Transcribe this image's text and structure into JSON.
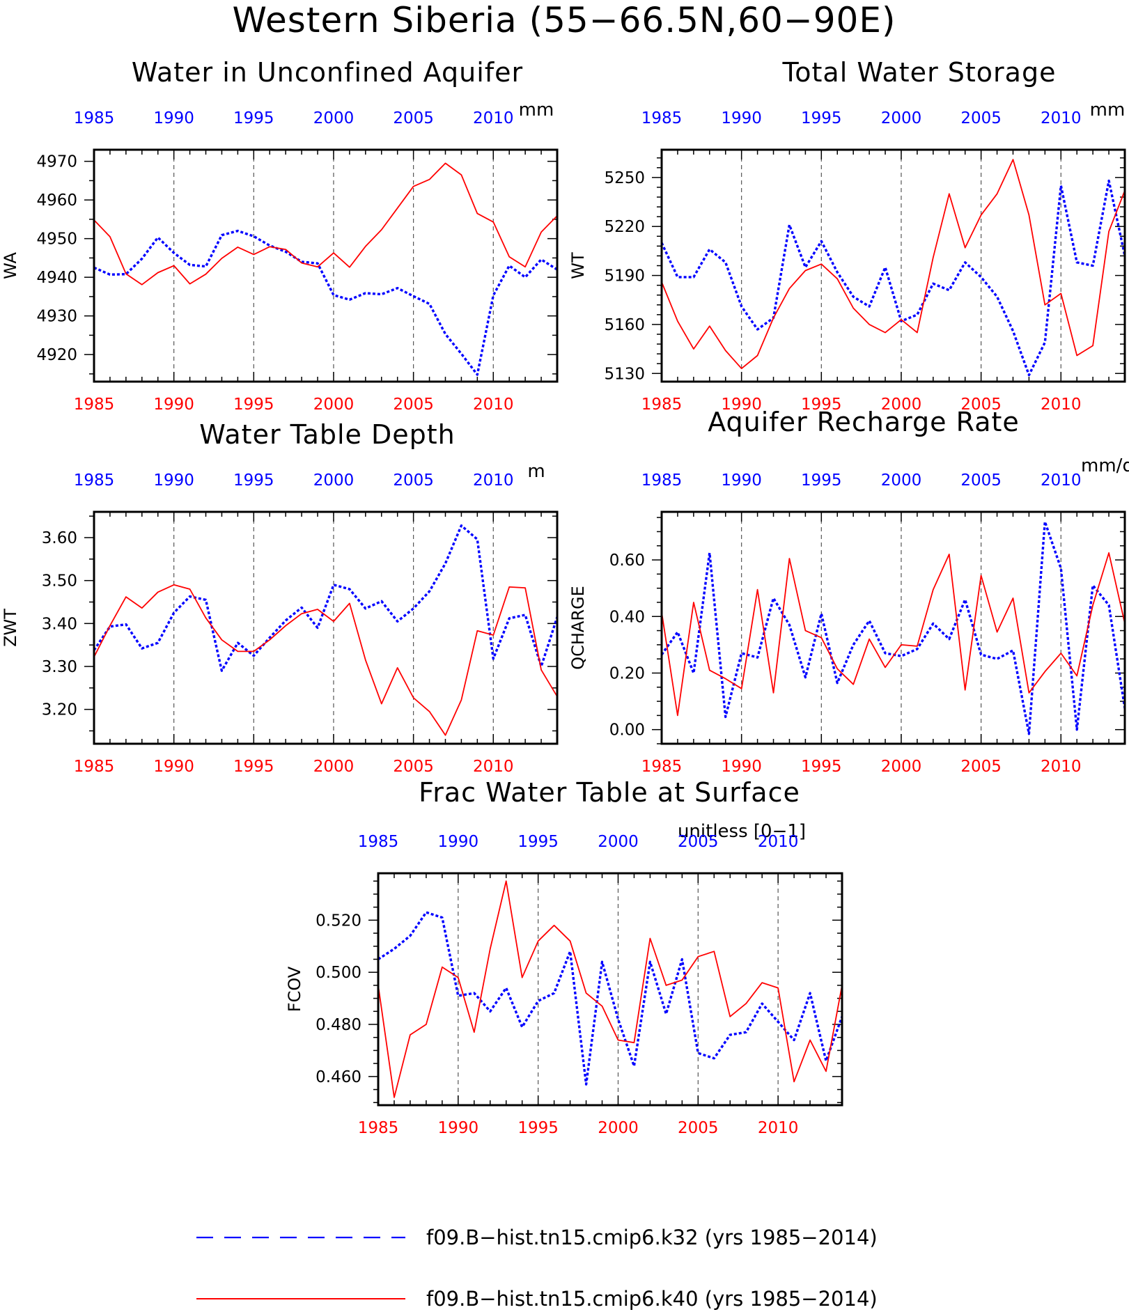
{
  "figure": {
    "title": "Western Siberia (55−66.5N,60−90E)"
  },
  "colors": {
    "k32": "#0000ff",
    "k40": "#ff0000",
    "axis": "#000000"
  },
  "legend": {
    "k32": "f09.B−hist.tn15.cmip6.k32 (yrs 1985−2014)",
    "k40": "f09.B−hist.tn15.cmip6.k40 (yrs 1985−2014)"
  },
  "chart_data": [
    {
      "type": "line",
      "title": "Water in Unconfined Aquifer",
      "ylabel": "WA",
      "units": "mm",
      "xlim": [
        1985,
        2014
      ],
      "ylim": [
        4913,
        4973
      ],
      "yticks": [
        4920,
        4930,
        4940,
        4950,
        4960,
        4970
      ],
      "ytick_labels": [
        "4920",
        "4930",
        "4940",
        "4950",
        "4960",
        "4970"
      ],
      "yminor": 2,
      "series": [
        {
          "key": "k32",
          "values": [
            4942.5,
            4940.7,
            4940.8,
            4944.8,
            4950.3,
            4946.3,
            4943.2,
            4942.8,
            4950.9,
            4952.0,
            4950.6,
            4948.2,
            4946.6,
            4944.0,
            4943.6,
            4935.4,
            4934.2,
            4935.9,
            4935.6,
            4937.2,
            4935.1,
            4933.1,
            4925.3,
            4920.2,
            4914.8,
            4935.3,
            4943.0,
            4940.0,
            4944.6,
            4942.0
          ]
        },
        {
          "key": "k40",
          "values": [
            4954.8,
            4950.5,
            4940.9,
            4938.1,
            4941.2,
            4943.0,
            4938.3,
            4940.8,
            4944.9,
            4947.8,
            4945.9,
            4947.9,
            4947.2,
            4943.7,
            4942.7,
            4946.3,
            4942.6,
            4948.0,
            4952.3,
            4957.9,
            4963.5,
            4965.3,
            4969.5,
            4966.5,
            4956.5,
            4954.3,
            4945.3,
            4942.7,
            4951.7,
            4955.9
          ]
        }
      ]
    },
    {
      "type": "line",
      "title": "Total Water Storage",
      "ylabel": "WT",
      "units": "mm",
      "xlim": [
        1985,
        2014
      ],
      "ylim": [
        5125,
        5267
      ],
      "yticks": [
        5130,
        5160,
        5190,
        5220,
        5250
      ],
      "ytick_labels": [
        "5130",
        "5160",
        "5190",
        "5220",
        "5250"
      ],
      "yminor": 5,
      "series": [
        {
          "key": "k32",
          "values": [
            5210,
            5189,
            5189,
            5206,
            5198,
            5171,
            5157,
            5164,
            5221,
            5195,
            5211,
            5192,
            5177,
            5171,
            5195,
            5162,
            5166,
            5185,
            5181,
            5198,
            5189,
            5177,
            5156,
            5129,
            5149,
            5245,
            5198,
            5196,
            5248,
            5202
          ]
        },
        {
          "key": "k40",
          "values": [
            5186,
            5162,
            5145,
            5159,
            5144,
            5133,
            5141,
            5164,
            5182,
            5193,
            5197,
            5188,
            5170,
            5160,
            5155,
            5163,
            5155,
            5201,
            5240,
            5207,
            5227,
            5240,
            5261,
            5227,
            5172,
            5179,
            5141,
            5147,
            5217,
            5242
          ]
        }
      ]
    },
    {
      "type": "line",
      "title": "Water Table Depth",
      "ylabel": "ZWT",
      "units": "m",
      "xlim": [
        1985,
        2014
      ],
      "ylim": [
        3.12,
        3.66
      ],
      "yticks": [
        3.2,
        3.3,
        3.4,
        3.5,
        3.6
      ],
      "ytick_labels": [
        "3.20",
        "3.30",
        "3.40",
        "3.50",
        "3.60"
      ],
      "yminor": 2,
      "series": [
        {
          "key": "k32",
          "values": [
            3.338,
            3.393,
            3.398,
            3.342,
            3.355,
            3.425,
            3.463,
            3.455,
            3.29,
            3.355,
            3.325,
            3.367,
            3.407,
            3.437,
            3.39,
            3.49,
            3.48,
            3.435,
            3.452,
            3.405,
            3.435,
            3.475,
            3.54,
            3.628,
            3.596,
            3.318,
            3.412,
            3.42,
            3.3,
            3.415
          ]
        },
        {
          "key": "k40",
          "values": [
            3.322,
            3.395,
            3.462,
            3.436,
            3.473,
            3.49,
            3.48,
            3.413,
            3.362,
            3.335,
            3.335,
            3.362,
            3.395,
            3.423,
            3.433,
            3.405,
            3.447,
            3.315,
            3.213,
            3.297,
            3.227,
            3.195,
            3.14,
            3.222,
            3.383,
            3.373,
            3.485,
            3.483,
            3.292,
            3.23
          ]
        }
      ]
    },
    {
      "type": "line",
      "title": "Aquifer Recharge Rate",
      "ylabel": "QCHARGE",
      "units": "mm/d",
      "xlim": [
        1985,
        2014
      ],
      "ylim": [
        -0.05,
        0.77
      ],
      "yticks": [
        0.0,
        0.2,
        0.4,
        0.6
      ],
      "ytick_labels": [
        "0.00",
        "0.20",
        "0.40",
        "0.60"
      ],
      "yminor": 4,
      "series": [
        {
          "key": "k32",
          "values": [
            0.265,
            0.345,
            0.2,
            0.625,
            0.045,
            0.27,
            0.255,
            0.465,
            0.37,
            0.185,
            0.41,
            0.165,
            0.3,
            0.385,
            0.27,
            0.26,
            0.285,
            0.375,
            0.32,
            0.46,
            0.265,
            0.25,
            0.28,
            -0.015,
            0.735,
            0.57,
            0.0,
            0.51,
            0.44,
            0.075
          ]
        },
        {
          "key": "k40",
          "values": [
            0.415,
            0.05,
            0.45,
            0.21,
            0.18,
            0.145,
            0.495,
            0.13,
            0.605,
            0.35,
            0.325,
            0.215,
            0.16,
            0.32,
            0.22,
            0.3,
            0.295,
            0.495,
            0.62,
            0.14,
            0.545,
            0.345,
            0.465,
            0.13,
            0.205,
            0.27,
            0.19,
            0.44,
            0.625,
            0.375
          ]
        }
      ]
    },
    {
      "type": "line",
      "title": "Frac Water Table at Surface",
      "ylabel": "FCOV",
      "units": "unitless [0−1]",
      "xlim": [
        1985,
        2014
      ],
      "ylim": [
        0.449,
        0.538
      ],
      "yticks": [
        0.46,
        0.48,
        0.5,
        0.52
      ],
      "ytick_labels": [
        "0.460",
        "0.480",
        "0.500",
        "0.520"
      ],
      "yminor": 4,
      "series": [
        {
          "key": "k32",
          "values": [
            0.505,
            0.509,
            0.514,
            0.523,
            0.521,
            0.491,
            0.492,
            0.485,
            0.494,
            0.479,
            0.489,
            0.492,
            0.508,
            0.457,
            0.504,
            0.482,
            0.464,
            0.504,
            0.484,
            0.505,
            0.469,
            0.467,
            0.476,
            0.477,
            0.488,
            0.481,
            0.474,
            0.492,
            0.466,
            0.483
          ]
        },
        {
          "key": "k40",
          "values": [
            0.495,
            0.452,
            0.476,
            0.48,
            0.502,
            0.498,
            0.477,
            0.509,
            0.535,
            0.498,
            0.512,
            0.518,
            0.512,
            0.492,
            0.487,
            0.474,
            0.473,
            0.513,
            0.495,
            0.497,
            0.506,
            0.508,
            0.483,
            0.488,
            0.496,
            0.494,
            0.458,
            0.474,
            0.462,
            0.495
          ]
        }
      ]
    }
  ]
}
